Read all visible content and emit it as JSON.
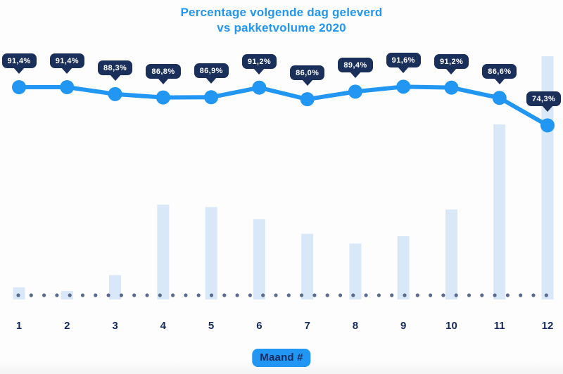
{
  "title": {
    "line1": "Percentage volgende dag geleverd",
    "line2": "vs pakketvolume 2020"
  },
  "x_axis": {
    "tick_labels": [
      "1",
      "2",
      "3",
      "4",
      "5",
      "6",
      "7",
      "8",
      "9",
      "10",
      "11",
      "12"
    ],
    "axis_badge": "Maand #"
  },
  "colors": {
    "accent_blue": "#2196F3",
    "tooltip_navy": "#1B2F5B",
    "bar_fill": "#D9E8F8",
    "dot_color": "#5A6B8C",
    "axis_text": "#152A5F",
    "page_bg": "#FDFDFE"
  },
  "chart_data": {
    "type": "combo",
    "title": "Percentage volgende dag geleverd vs pakketvolume 2020",
    "categories": [
      "1",
      "2",
      "3",
      "4",
      "5",
      "6",
      "7",
      "8",
      "9",
      "10",
      "11",
      "12"
    ],
    "xlabel": "Maand #",
    "legend": "none",
    "grid": "none",
    "baseline_style": "dotted",
    "series": [
      {
        "name": "Percentage volgende dag geleverd",
        "type": "line",
        "unit": "percent",
        "values": [
          91.4,
          91.4,
          88.3,
          86.8,
          86.9,
          91.2,
          86.0,
          89.4,
          91.6,
          91.2,
          86.6,
          74.3
        ],
        "point_labels": [
          "91,4%",
          "91,4%",
          "88,3%",
          "86,8%",
          "86,9%",
          "91,2%",
          "86,0%",
          "89,4%",
          "91,6%",
          "91,2%",
          "86,6%",
          "74,3%"
        ]
      },
      {
        "name": "Pakketvolume 2020",
        "type": "bar",
        "unit": "relative_index_max_100",
        "values": [
          5,
          3.5,
          10,
          39,
          38,
          33,
          27,
          23,
          26,
          37,
          72,
          100
        ]
      }
    ]
  }
}
